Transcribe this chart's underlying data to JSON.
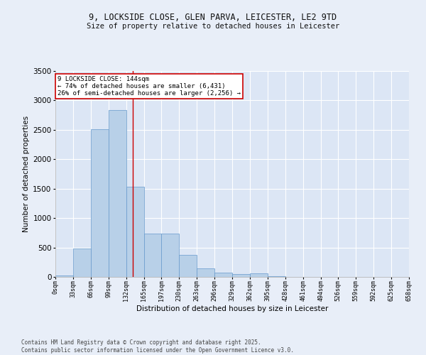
{
  "title_line1": "9, LOCKSIDE CLOSE, GLEN PARVA, LEICESTER, LE2 9TD",
  "title_line2": "Size of property relative to detached houses in Leicester",
  "xlabel": "Distribution of detached houses by size in Leicester",
  "ylabel": "Number of detached properties",
  "bar_color": "#b8d0e8",
  "bar_edge_color": "#6699cc",
  "background_color": "#dce6f5",
  "grid_color": "#ffffff",
  "annotation_text": "9 LOCKSIDE CLOSE: 144sqm\n← 74% of detached houses are smaller (6,431)\n26% of semi-detached houses are larger (2,256) →",
  "vline_x": 144,
  "vline_color": "#cc0000",
  "bin_edges": [
    0,
    33,
    66,
    99,
    132,
    165,
    197,
    230,
    263,
    296,
    329,
    362,
    395,
    428,
    461,
    494,
    526,
    559,
    592,
    625,
    658
  ],
  "bar_heights": [
    20,
    480,
    2510,
    2840,
    1530,
    740,
    740,
    375,
    150,
    70,
    50,
    55,
    10,
    5,
    2,
    1,
    0,
    0,
    0,
    0
  ],
  "ylim": [
    0,
    3500
  ],
  "yticks": [
    0,
    500,
    1000,
    1500,
    2000,
    2500,
    3000,
    3500
  ],
  "footnote": "Contains HM Land Registry data © Crown copyright and database right 2025.\nContains public sector information licensed under the Open Government Licence v3.0.",
  "tick_labels": [
    "0sqm",
    "33sqm",
    "66sqm",
    "99sqm",
    "132sqm",
    "165sqm",
    "197sqm",
    "230sqm",
    "263sqm",
    "296sqm",
    "329sqm",
    "362sqm",
    "395sqm",
    "428sqm",
    "461sqm",
    "494sqm",
    "526sqm",
    "559sqm",
    "592sqm",
    "625sqm",
    "658sqm"
  ],
  "fig_width": 6.0,
  "fig_height": 5.0,
  "fig_bg": "#e8eef8"
}
